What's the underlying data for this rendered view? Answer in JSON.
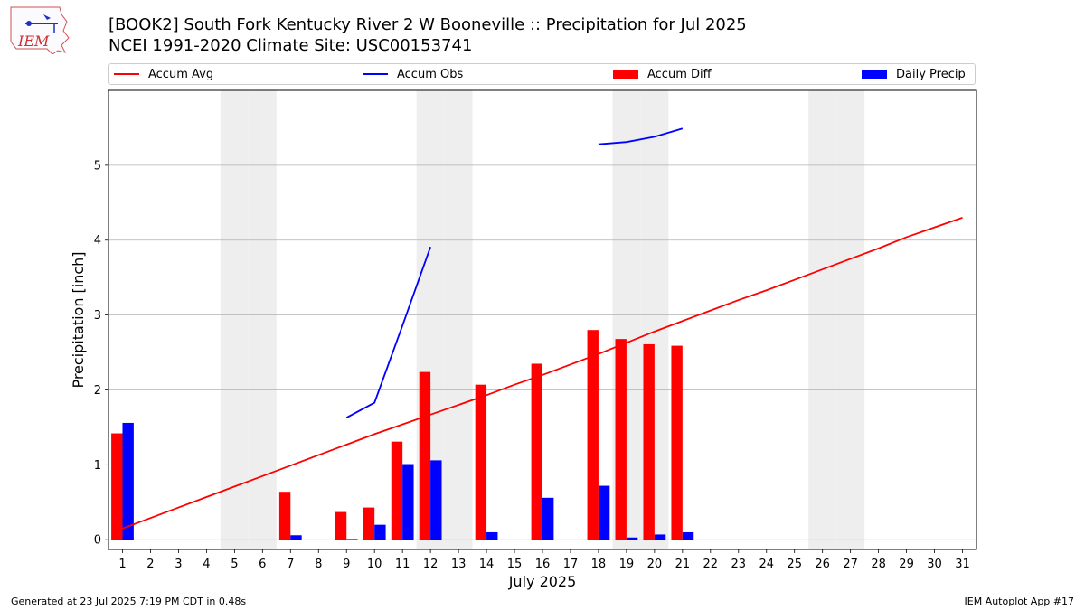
{
  "header": {
    "title_line1": "[BOOK2] South Fork Kentucky River 2 W Booneville :: Precipitation for Jul 2025",
    "title_line2": "NCEI 1991-2020 Climate Site: USC00153741",
    "logo_text": "IEM"
  },
  "footer": {
    "generated": "Generated at 23 Jul 2025 7:19 PM CDT in 0.48s",
    "app": "IEM Autoplot App #17"
  },
  "colors": {
    "avg": "#ff0000",
    "obs": "#0000ff",
    "diff": "#ff0000",
    "daily": "#0000ff",
    "weekend": "#eeeeee",
    "grid": "#b0b0b0"
  },
  "chart_data": {
    "type": "bar",
    "title": "[BOOK2] South Fork Kentucky River 2 W Booneville :: Precipitation for Jul 2025",
    "xlabel": "July 2025",
    "ylabel": "Precipitation [inch]",
    "xlim": [
      0.5,
      31.5
    ],
    "ylim": [
      -0.13,
      6.0
    ],
    "yticks": [
      0,
      1,
      2,
      3,
      4,
      5
    ],
    "grid": "horizontal",
    "legend_position": "top",
    "days": [
      1,
      2,
      3,
      4,
      5,
      6,
      7,
      8,
      9,
      10,
      11,
      12,
      13,
      14,
      15,
      16,
      17,
      18,
      19,
      20,
      21,
      22,
      23,
      24,
      25,
      26,
      27,
      28,
      29,
      30,
      31
    ],
    "weekend_days": [
      5,
      6,
      12,
      13,
      19,
      20,
      26,
      27
    ],
    "legend": [
      "Accum Avg",
      "Accum Obs",
      "Accum Diff",
      "Daily Precip"
    ],
    "series": [
      {
        "name": "Accum Avg",
        "kind": "line",
        "x": [
          1,
          2,
          3,
          4,
          5,
          6,
          7,
          8,
          9,
          10,
          11,
          12,
          13,
          14,
          15,
          16,
          17,
          18,
          19,
          20,
          21,
          22,
          23,
          24,
          25,
          26,
          27,
          28,
          29,
          30,
          31
        ],
        "values": [
          0.15,
          0.29,
          0.43,
          0.57,
          0.71,
          0.85,
          0.99,
          1.13,
          1.27,
          1.41,
          1.54,
          1.67,
          1.8,
          1.93,
          2.07,
          2.2,
          2.34,
          2.48,
          2.63,
          2.78,
          2.92,
          3.06,
          3.2,
          3.33,
          3.47,
          3.61,
          3.75,
          3.89,
          4.04,
          4.17,
          4.3
        ]
      },
      {
        "name": "Accum Obs",
        "kind": "line",
        "segments": [
          {
            "x": [
              9,
              10,
              11,
              12
            ],
            "values": [
              1.63,
              1.83,
              2.86,
              3.91
            ]
          },
          {
            "x": [
              18,
              19,
              20,
              21
            ],
            "values": [
              5.28,
              5.31,
              5.38,
              5.49
            ]
          }
        ]
      },
      {
        "name": "Accum Diff",
        "kind": "bar",
        "x": [
          1,
          7,
          9,
          10,
          11,
          12,
          14,
          16,
          18,
          19,
          20,
          21
        ],
        "values": [
          1.42,
          0.64,
          0.37,
          0.43,
          1.31,
          2.24,
          2.07,
          2.35,
          2.8,
          2.68,
          2.61,
          2.59
        ]
      },
      {
        "name": "Daily Precip",
        "kind": "bar",
        "x": [
          1,
          7,
          9,
          10,
          11,
          12,
          14,
          16,
          18,
          19,
          20,
          21
        ],
        "values": [
          1.56,
          0.06,
          0.01,
          0.2,
          1.01,
          1.06,
          0.1,
          0.56,
          0.72,
          0.03,
          0.07,
          0.1
        ]
      }
    ]
  }
}
